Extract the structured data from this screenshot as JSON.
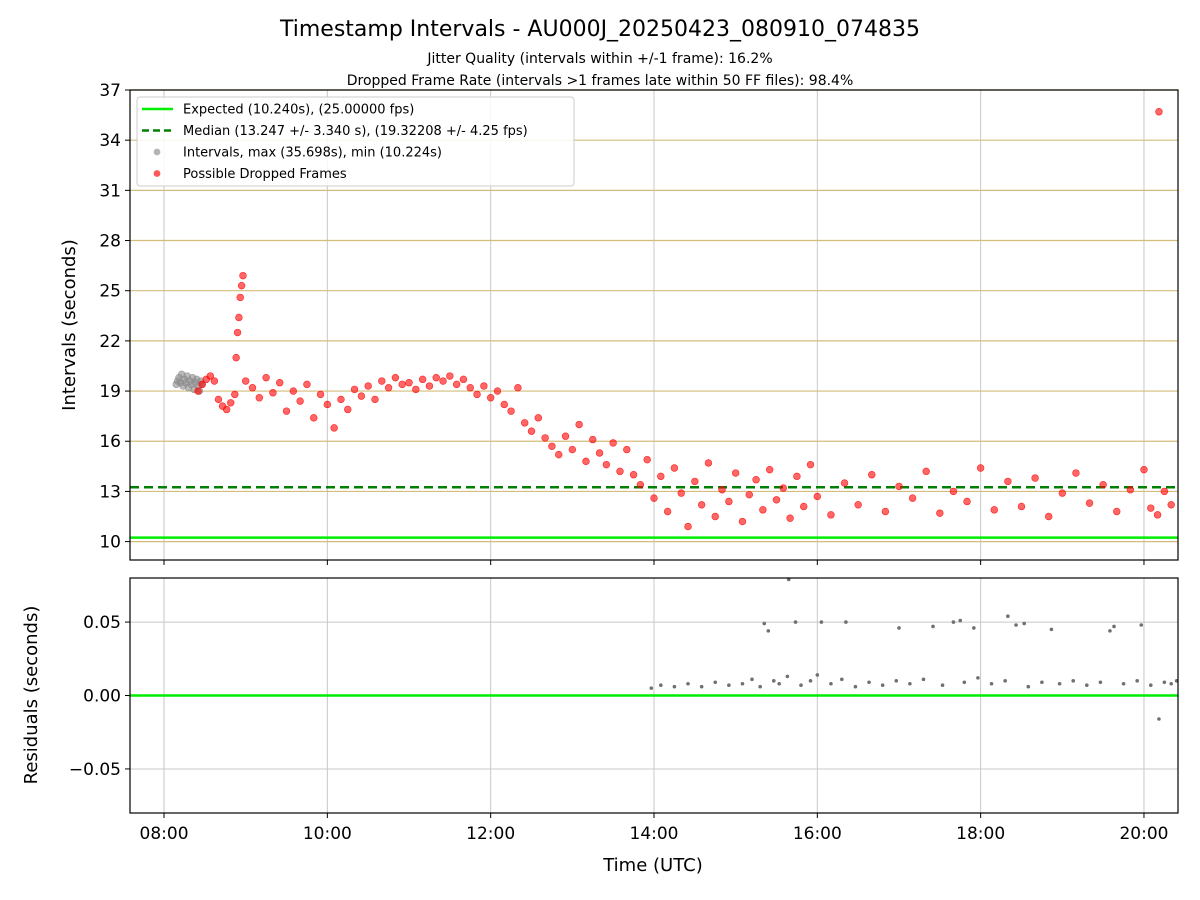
{
  "chart_data": [
    {
      "type": "scatter",
      "title": "Timestamp Intervals - AU000J_20250423_080910_074835",
      "subtitles": [
        "Jitter Quality (intervals within +/-1 frame): 16.2%",
        "Dropped Frame Rate (intervals >1 frames late within 50 FF files): 98.4%"
      ],
      "xlabel": "",
      "ylabel": "Intervals (seconds)",
      "xlim": [
        "07:35",
        "20:25"
      ],
      "ylim": [
        8.9,
        37
      ],
      "yticks": [
        10,
        13,
        16,
        19,
        22,
        25,
        28,
        31,
        34,
        37
      ],
      "ytick_labels": [
        "10",
        "13",
        "16",
        "19",
        "22",
        "25",
        "28",
        "31",
        "34",
        "37"
      ],
      "grid": {
        "x": true,
        "y": true,
        "y_color": "#d4bd7a",
        "x_color": "#c8c8c8"
      },
      "legend": {
        "position": "top-left",
        "entries": [
          {
            "label": "Expected (10.240s), (25.00000 fps)",
            "style": "solid-line",
            "color": "#00ee00"
          },
          {
            "label": "Median (13.247 +/- 3.340 s), (19.32208 +/- 4.25 fps)",
            "style": "dashed-line",
            "color": "#008000"
          },
          {
            "label": "Intervals, max (35.698s), min (10.224s)",
            "style": "marker",
            "color": "#8c8c8c"
          },
          {
            "label": "Possible Dropped Frames",
            "style": "marker",
            "color": "#ff0000"
          }
        ]
      },
      "lines": [
        {
          "name": "Expected",
          "y": 10.24,
          "color": "#00ee00",
          "dash": false
        },
        {
          "name": "Median",
          "y": 13.247,
          "color": "#008000",
          "dash": true
        }
      ],
      "series": [
        {
          "name": "Intervals, max (35.698s), min (10.224s)",
          "color": "#8c8c8c",
          "points": [
            [
              "08:09",
              19.4
            ],
            [
              "08:10",
              19.6
            ],
            [
              "08:11",
              19.8
            ],
            [
              "08:12",
              19.5
            ],
            [
              "08:13",
              20.0
            ],
            [
              "08:14",
              19.3
            ],
            [
              "08:15",
              19.7
            ],
            [
              "08:16",
              19.5
            ],
            [
              "08:17",
              19.9
            ],
            [
              "08:18",
              19.2
            ],
            [
              "08:19",
              19.6
            ],
            [
              "08:20",
              19.4
            ],
            [
              "08:21",
              19.8
            ],
            [
              "08:22",
              19.1
            ],
            [
              "08:23",
              19.5
            ],
            [
              "08:24",
              19.7
            ],
            [
              "08:25",
              19.3
            ],
            [
              "08:26",
              19.0
            ],
            [
              "08:27",
              19.6
            ],
            [
              "08:28",
              19.4
            ]
          ]
        },
        {
          "name": "Possible Dropped Frames",
          "color": "#ff0000",
          "points": [
            [
              "08:25",
              19.0
            ],
            [
              "08:28",
              19.4
            ],
            [
              "08:31",
              19.7
            ],
            [
              "08:34",
              19.9
            ],
            [
              "08:37",
              19.6
            ],
            [
              "08:40",
              18.5
            ],
            [
              "08:43",
              18.1
            ],
            [
              "08:46",
              17.9
            ],
            [
              "08:49",
              18.3
            ],
            [
              "08:52",
              18.8
            ],
            [
              "08:53",
              21.0
            ],
            [
              "08:54",
              22.5
            ],
            [
              "08:55",
              23.4
            ],
            [
              "08:56",
              24.6
            ],
            [
              "08:57",
              25.3
            ],
            [
              "08:58",
              25.9
            ],
            [
              "09:00",
              19.6
            ],
            [
              "09:05",
              19.2
            ],
            [
              "09:10",
              18.6
            ],
            [
              "09:15",
              19.8
            ],
            [
              "09:20",
              18.9
            ],
            [
              "09:25",
              19.5
            ],
            [
              "09:30",
              17.8
            ],
            [
              "09:35",
              19.0
            ],
            [
              "09:40",
              18.4
            ],
            [
              "09:45",
              19.4
            ],
            [
              "09:50",
              17.4
            ],
            [
              "09:55",
              18.8
            ],
            [
              "10:00",
              18.2
            ],
            [
              "10:05",
              16.8
            ],
            [
              "10:10",
              18.5
            ],
            [
              "10:15",
              17.9
            ],
            [
              "10:20",
              19.1
            ],
            [
              "10:25",
              18.7
            ],
            [
              "10:30",
              19.3
            ],
            [
              "10:35",
              18.5
            ],
            [
              "10:40",
              19.6
            ],
            [
              "10:45",
              19.2
            ],
            [
              "10:50",
              19.8
            ],
            [
              "10:55",
              19.4
            ],
            [
              "11:00",
              19.5
            ],
            [
              "11:05",
              19.1
            ],
            [
              "11:10",
              19.7
            ],
            [
              "11:15",
              19.3
            ],
            [
              "11:20",
              19.8
            ],
            [
              "11:25",
              19.6
            ],
            [
              "11:30",
              19.9
            ],
            [
              "11:35",
              19.4
            ],
            [
              "11:40",
              19.7
            ],
            [
              "11:45",
              19.2
            ],
            [
              "11:50",
              18.8
            ],
            [
              "11:55",
              19.3
            ],
            [
              "12:00",
              18.6
            ],
            [
              "12:05",
              19.0
            ],
            [
              "12:10",
              18.2
            ],
            [
              "12:15",
              17.8
            ],
            [
              "12:20",
              19.2
            ],
            [
              "12:25",
              17.1
            ],
            [
              "12:30",
              16.6
            ],
            [
              "12:35",
              17.4
            ],
            [
              "12:40",
              16.2
            ],
            [
              "12:45",
              15.7
            ],
            [
              "12:50",
              15.2
            ],
            [
              "12:55",
              16.3
            ],
            [
              "13:00",
              15.5
            ],
            [
              "13:05",
              17.0
            ],
            [
              "13:10",
              14.8
            ],
            [
              "13:15",
              16.1
            ],
            [
              "13:20",
              15.3
            ],
            [
              "13:25",
              14.6
            ],
            [
              "13:30",
              15.9
            ],
            [
              "13:35",
              14.2
            ],
            [
              "13:40",
              15.5
            ],
            [
              "13:45",
              14.0
            ],
            [
              "13:50",
              13.4
            ],
            [
              "13:55",
              14.9
            ],
            [
              "14:00",
              12.6
            ],
            [
              "14:05",
              13.9
            ],
            [
              "14:10",
              11.8
            ],
            [
              "14:15",
              14.4
            ],
            [
              "14:20",
              12.9
            ],
            [
              "14:25",
              10.9
            ],
            [
              "14:30",
              13.6
            ],
            [
              "14:35",
              12.2
            ],
            [
              "14:40",
              14.7
            ],
            [
              "14:45",
              11.5
            ],
            [
              "14:50",
              13.1
            ],
            [
              "14:55",
              12.4
            ],
            [
              "15:00",
              14.1
            ],
            [
              "15:05",
              11.2
            ],
            [
              "15:10",
              12.8
            ],
            [
              "15:15",
              13.7
            ],
            [
              "15:20",
              11.9
            ],
            [
              "15:25",
              14.3
            ],
            [
              "15:30",
              12.5
            ],
            [
              "15:35",
              13.2
            ],
            [
              "15:40",
              11.4
            ],
            [
              "15:45",
              13.9
            ],
            [
              "15:50",
              12.1
            ],
            [
              "15:55",
              14.6
            ],
            [
              "16:00",
              12.7
            ],
            [
              "16:10",
              11.6
            ],
            [
              "16:20",
              13.5
            ],
            [
              "16:30",
              12.2
            ],
            [
              "16:40",
              14.0
            ],
            [
              "16:50",
              11.8
            ],
            [
              "17:00",
              13.3
            ],
            [
              "17:10",
              12.6
            ],
            [
              "17:20",
              14.2
            ],
            [
              "17:30",
              11.7
            ],
            [
              "17:40",
              13.0
            ],
            [
              "17:50",
              12.4
            ],
            [
              "18:00",
              14.4
            ],
            [
              "18:10",
              11.9
            ],
            [
              "18:20",
              13.6
            ],
            [
              "18:30",
              12.1
            ],
            [
              "18:40",
              13.8
            ],
            [
              "18:50",
              11.5
            ],
            [
              "19:00",
              12.9
            ],
            [
              "19:10",
              14.1
            ],
            [
              "19:20",
              12.3
            ],
            [
              "19:30",
              13.4
            ],
            [
              "19:40",
              11.8
            ],
            [
              "19:50",
              13.1
            ],
            [
              "20:00",
              14.3
            ],
            [
              "20:05",
              12.0
            ],
            [
              "20:10",
              11.6
            ],
            [
              "20:15",
              13.0
            ],
            [
              "20:20",
              12.2
            ],
            [
              "20:11",
              35.7
            ]
          ]
        }
      ]
    },
    {
      "type": "scatter",
      "title": "",
      "xlabel": "Time (UTC)",
      "ylabel": "Residuals (seconds)",
      "xlim": [
        "07:35",
        "20:25"
      ],
      "ylim": [
        -0.08,
        0.08
      ],
      "yticks": [
        -0.05,
        0.0,
        0.05
      ],
      "ytick_labels": [
        "−0.05",
        "0.00",
        "0.05"
      ],
      "xtick_labels": [
        "08:00",
        "10:00",
        "12:00",
        "14:00",
        "16:00",
        "18:00",
        "20:00"
      ],
      "grid": {
        "x": true,
        "y": true
      },
      "lines": [
        {
          "name": "zero",
          "y": 0.0,
          "color": "#00ee00",
          "dash": false
        }
      ],
      "series": [
        {
          "name": "",
          "color": "#707070",
          "points": [
            [
              "13:58",
              0.005
            ],
            [
              "14:05",
              0.007
            ],
            [
              "14:15",
              0.006
            ],
            [
              "14:25",
              0.008
            ],
            [
              "14:35",
              0.006
            ],
            [
              "14:45",
              0.009
            ],
            [
              "14:55",
              0.007
            ],
            [
              "15:05",
              0.008
            ],
            [
              "15:12",
              0.011
            ],
            [
              "15:18",
              0.006
            ],
            [
              "15:21",
              0.049
            ],
            [
              "15:24",
              0.044
            ],
            [
              "15:28",
              0.01
            ],
            [
              "15:32",
              0.008
            ],
            [
              "15:38",
              0.013
            ],
            [
              "15:39",
              0.079
            ],
            [
              "15:44",
              0.05
            ],
            [
              "15:48",
              0.007
            ],
            [
              "15:55",
              0.01
            ],
            [
              "16:00",
              0.014
            ],
            [
              "16:03",
              0.05
            ],
            [
              "16:10",
              0.008
            ],
            [
              "16:18",
              0.011
            ],
            [
              "16:21",
              0.05
            ],
            [
              "16:28",
              0.006
            ],
            [
              "16:38",
              0.009
            ],
            [
              "16:48",
              0.007
            ],
            [
              "16:58",
              0.01
            ],
            [
              "17:00",
              0.046
            ],
            [
              "17:08",
              0.008
            ],
            [
              "17:18",
              0.011
            ],
            [
              "17:25",
              0.047
            ],
            [
              "17:32",
              0.007
            ],
            [
              "17:40",
              0.05
            ],
            [
              "17:45",
              0.051
            ],
            [
              "17:48",
              0.009
            ],
            [
              "17:55",
              0.046
            ],
            [
              "17:58",
              0.012
            ],
            [
              "18:08",
              0.008
            ],
            [
              "18:18",
              0.01
            ],
            [
              "18:20",
              0.054
            ],
            [
              "18:26",
              0.048
            ],
            [
              "18:32",
              0.049
            ],
            [
              "18:35",
              0.006
            ],
            [
              "18:45",
              0.009
            ],
            [
              "18:52",
              0.045
            ],
            [
              "18:58",
              0.008
            ],
            [
              "19:08",
              0.01
            ],
            [
              "19:18",
              0.007
            ],
            [
              "19:28",
              0.009
            ],
            [
              "19:35",
              0.044
            ],
            [
              "19:38",
              0.047
            ],
            [
              "19:45",
              0.008
            ],
            [
              "19:55",
              0.01
            ],
            [
              "19:58",
              0.048
            ],
            [
              "20:05",
              0.007
            ],
            [
              "20:11",
              -0.016
            ],
            [
              "20:15",
              0.009
            ],
            [
              "20:20",
              0.008
            ],
            [
              "20:24",
              0.01
            ]
          ]
        }
      ]
    }
  ]
}
